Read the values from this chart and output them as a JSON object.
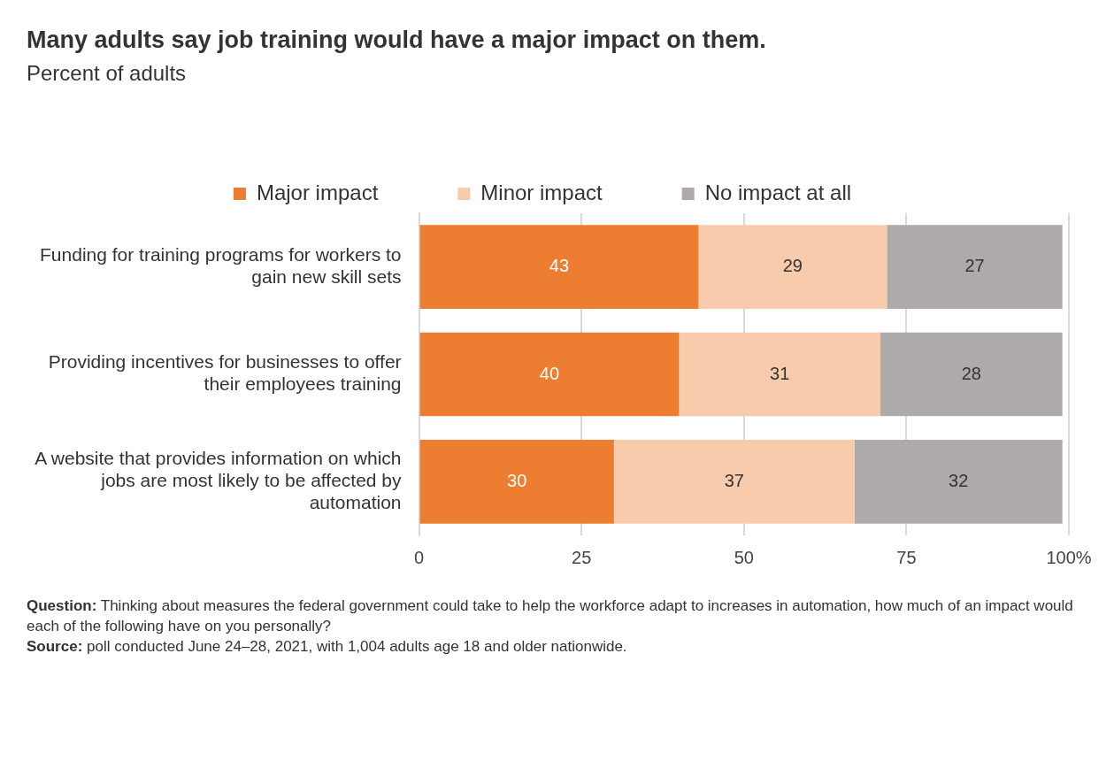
{
  "chart_data": {
    "type": "bar",
    "orientation": "horizontal",
    "stacked": true,
    "title": "Many adults say job training would have a major impact on them.",
    "subtitle": "Percent of adults",
    "categories": [
      "Funding for training programs for workers to gain new skill sets",
      "Providing incentives for businesses to offer their employees training",
      "A website that provides information on which jobs are most likely to be affected by automation"
    ],
    "series": [
      {
        "name": "Major impact",
        "color": "#ed7d31",
        "values": [
          43,
          40,
          30
        ]
      },
      {
        "name": "Minor impact",
        "color": "#f8cbad",
        "values": [
          29,
          31,
          37
        ]
      },
      {
        "name": "No impact at all",
        "color": "#aeaaaa",
        "values": [
          27,
          28,
          32
        ]
      }
    ],
    "xlim": [
      0,
      100
    ],
    "xticks": [
      0,
      25,
      50,
      75,
      {
        "value": 100,
        "label": "100%"
      }
    ],
    "grid": "x",
    "legend": "top",
    "data_labels": true,
    "annotations": [
      "**Question:** Thinking about measures the federal government could take to help the workforce adapt to increases in automation, how much of an impact would each of the following have on you personally?",
      "**Source:** poll conducted June 24–28, 2021, with 1,004 adults age 18 and older nationwide."
    ]
  }
}
